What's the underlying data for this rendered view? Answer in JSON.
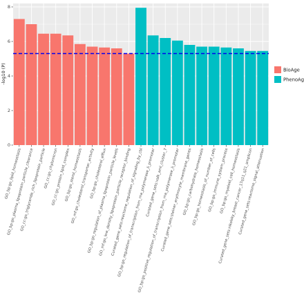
{
  "chart_data": {
    "type": "bar",
    "title": "",
    "ylabel": "-log10 (P)",
    "ylim": [
      0,
      8.2
    ],
    "yticks": [
      0,
      2,
      4,
      6,
      8
    ],
    "grid": true,
    "legend_position": "right",
    "threshold": {
      "value": 5.3,
      "color": "#0000ee",
      "style": "dashed"
    },
    "categories": [
      "GO_bp:go_lipid_homeostasis",
      "GO_bp:go_plasma_lipoprotein_particle_clearance",
      "GO_cc:go_triglyceride_rich_lipoprotein_particle",
      "GO_cc:go_chylomicron",
      "GO_cc:go_protein_lipid_complex",
      "GO_bp:go_sterol_homeostasis",
      "GO_mf:go_cholesterol_transporter_activity",
      "GO_bp:go_cholesterol_efflux",
      "GO_bp:go_regulation_of_plasma_lipoprotein_particle_levels",
      "GO_mf:go_low_density_lipoprotein_particle_receptor_binding",
      "Curated_gene_sets:reactome_regulation_of_signaling_by_cbl",
      "GO_bp:go_regulation_of_transcription_from_rna_polymerase_ii_promoter",
      "Curated_gene_sets:valk_aml_cluster_7",
      "GO_bp:go_positive_regulation_of_transcription_from_rna_polymerase_ii_promoter",
      "Curated_gene_sets:steiner_erythrocyte_membrane_genes",
      "GO_bp:go_carbohydrate_homeostasis",
      "GO_bp:go_homeostasis_of_number_of_cells",
      "GO_bp:go_immune_system_process",
      "GO_bp:go_myeloid_cell_homeostasis",
      "Curated_gene_sets:nikolsky_breast_cancer_17q11_q21_amplicon",
      "Curated_gene_sets:reactome_signal_attenuation"
    ],
    "values": [
      7.3,
      7.0,
      6.45,
      6.45,
      6.35,
      5.85,
      5.7,
      5.65,
      5.6,
      5.3,
      7.95,
      6.35,
      6.2,
      6.05,
      5.8,
      5.7,
      5.7,
      5.65,
      5.6,
      5.45,
      5.45
    ],
    "groups": [
      "BioAge",
      "BioAge",
      "BioAge",
      "BioAge",
      "BioAge",
      "BioAge",
      "BioAge",
      "BioAge",
      "BioAge",
      "BioAge",
      "PhenoAge",
      "PhenoAge",
      "PhenoAge",
      "PhenoAge",
      "PhenoAge",
      "PhenoAge",
      "PhenoAge",
      "PhenoAge",
      "PhenoAge",
      "PhenoAge",
      "PhenoAge"
    ],
    "legend": [
      {
        "name": "BioAge",
        "color": "#f8766d"
      },
      {
        "name": "PhenoAge",
        "color": "#00bfc4"
      }
    ]
  },
  "colors": {
    "panel_background": "#ebebeb",
    "gridline": "#ffffff",
    "bioage": "#f8766d",
    "phenoage": "#00bfc4",
    "threshold": "#0000ee"
  }
}
